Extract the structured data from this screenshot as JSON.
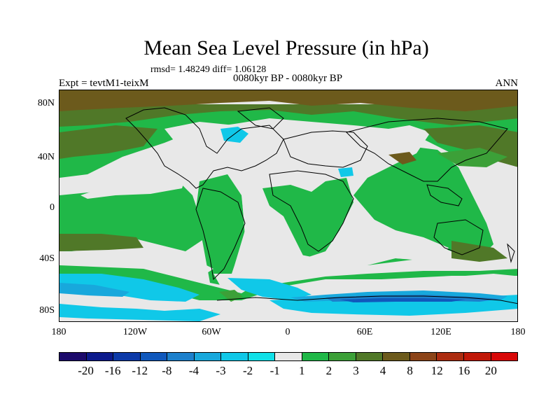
{
  "title": "Mean Sea Level Pressure (in hPa)",
  "stats": "rmsd= 1.48249 diff= 1.06128",
  "subtitle": "0080kyr BP - 0080kyr BP",
  "expt_label": "Expt = tevtM1-teixM",
  "season_label": "ANN",
  "lat_ticks": [
    "80N",
    "40N",
    "0",
    "40S",
    "80S"
  ],
  "lon_ticks": [
    "180",
    "120W",
    "60W",
    "0",
    "60E",
    "120E",
    "180"
  ],
  "colorbar": {
    "labels": [
      "-20",
      "-16",
      "-12",
      "-8",
      "-4",
      "-3",
      "-2",
      "-1",
      "1",
      "2",
      "3",
      "4",
      "8",
      "12",
      "16",
      "20"
    ],
    "colors": [
      "#1c0a6b",
      "#0c1a8c",
      "#0c3aa8",
      "#1058bc",
      "#1c80cc",
      "#18a8dc",
      "#10c8e8",
      "#10e0e8",
      "#e8e8e8",
      "#20b848",
      "#3ca038",
      "#507828",
      "#6c5a1c",
      "#8c4418",
      "#ac2c10",
      "#c01808",
      "#d80808"
    ]
  },
  "field_colors": {
    "neutral": "#e8e8e8",
    "pos2": "#20b848",
    "pos3": "#3ca038",
    "pos4": "#507828",
    "pos8": "#6c5a1c",
    "neg2": "#10c8e8",
    "neg3": "#18a8dc",
    "neg4": "#1c80cc",
    "neg8": "#1058bc"
  }
}
